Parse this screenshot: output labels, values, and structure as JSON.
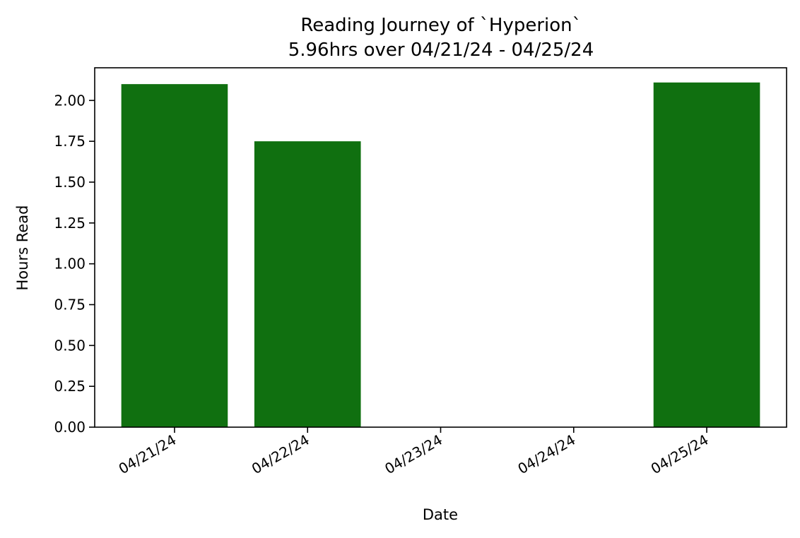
{
  "chart_data": {
    "type": "bar",
    "title": "Reading Journey of `Hyperion`",
    "subtitle": "5.96hrs over 04/21/24 - 04/25/24",
    "xlabel": "Date",
    "ylabel": "Hours Read",
    "categories": [
      "04/21/24",
      "04/22/24",
      "04/23/24",
      "04/24/24",
      "04/25/24"
    ],
    "values": [
      2.1,
      1.75,
      0,
      0,
      2.11
    ],
    "ylim": [
      0,
      2.2
    ],
    "yticks": [
      "0.00",
      "0.25",
      "0.50",
      "0.75",
      "1.00",
      "1.25",
      "1.50",
      "1.75",
      "2.00"
    ],
    "bar_color": "#107010",
    "grid": false,
    "legend": "none"
  }
}
